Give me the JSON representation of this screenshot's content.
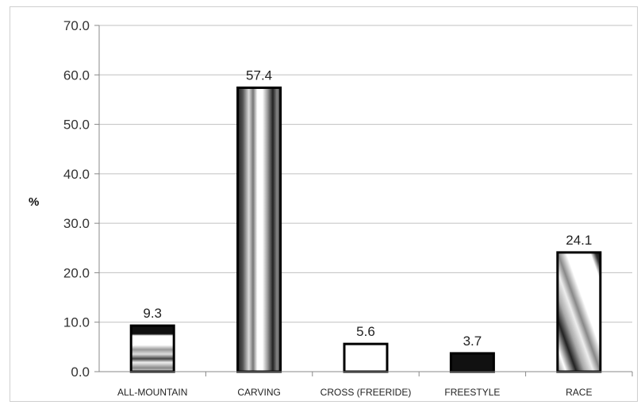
{
  "chart_data": {
    "type": "bar",
    "title": "",
    "xlabel": "",
    "ylabel": "%",
    "ylim": [
      0,
      70
    ],
    "yticks": [
      "0.0",
      "10.0",
      "20.0",
      "30.0",
      "40.0",
      "50.0",
      "60.0",
      "70.0"
    ],
    "grid": true,
    "legend": "none",
    "categories": [
      "ALL-MOUNTAIN",
      "CARVING",
      "CROSS (FREERIDE)",
      "FREESTYLE",
      "RACE"
    ],
    "values": [
      9.3,
      57.4,
      5.6,
      3.7,
      24.1
    ],
    "data_labels": [
      "9.3",
      "57.4",
      "5.6",
      "3.7",
      "24.1"
    ],
    "fills": [
      "horizontal-gradient-bands",
      "vertical-gradient-bands",
      "white",
      "black",
      "diagonal-gradient-bands"
    ],
    "colors": {
      "grid": "#c0c0c0",
      "bar_outline": "#000000",
      "dark": "#111111",
      "light": "#ffffff"
    }
  }
}
